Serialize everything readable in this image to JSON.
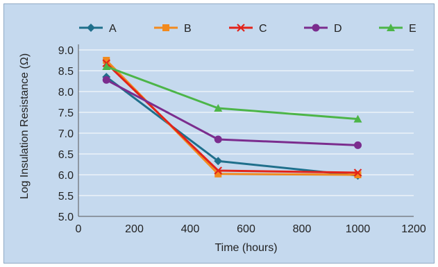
{
  "chart_data": {
    "type": "line",
    "title": "",
    "xlabel": "Time (hours)",
    "ylabel": "Log Insulation Resistance (Ω)",
    "xlim": [
      0,
      1200
    ],
    "ylim": [
      5.0,
      9.0
    ],
    "xticks": [
      "0",
      "200",
      "400",
      "600",
      "800",
      "1000",
      "1200"
    ],
    "yticks": [
      "5.0",
      "5.5",
      "6.0",
      "6.5",
      "7.0",
      "7.5",
      "8.0",
      "8.5",
      "9.0"
    ],
    "grid": "horizontal",
    "legend_position": "top",
    "series": [
      {
        "name": "A",
        "color": "#1f6f8b",
        "marker": "diamond",
        "x": [
          100,
          500,
          1000
        ],
        "y": [
          8.35,
          6.33,
          5.98
        ]
      },
      {
        "name": "B",
        "color": "#f28a1e",
        "marker": "square",
        "x": [
          100,
          500,
          1000
        ],
        "y": [
          8.75,
          6.02,
          6.0
        ]
      },
      {
        "name": "C",
        "color": "#e2231a",
        "marker": "x",
        "x": [
          100,
          500,
          1000
        ],
        "y": [
          8.68,
          6.1,
          6.05
        ]
      },
      {
        "name": "D",
        "color": "#7b2d8e",
        "marker": "circle",
        "x": [
          100,
          500,
          1000
        ],
        "y": [
          8.28,
          6.85,
          6.71
        ]
      },
      {
        "name": "E",
        "color": "#4cb548",
        "marker": "triangle",
        "x": [
          100,
          500,
          1000
        ],
        "y": [
          8.6,
          7.6,
          7.34
        ]
      }
    ]
  }
}
